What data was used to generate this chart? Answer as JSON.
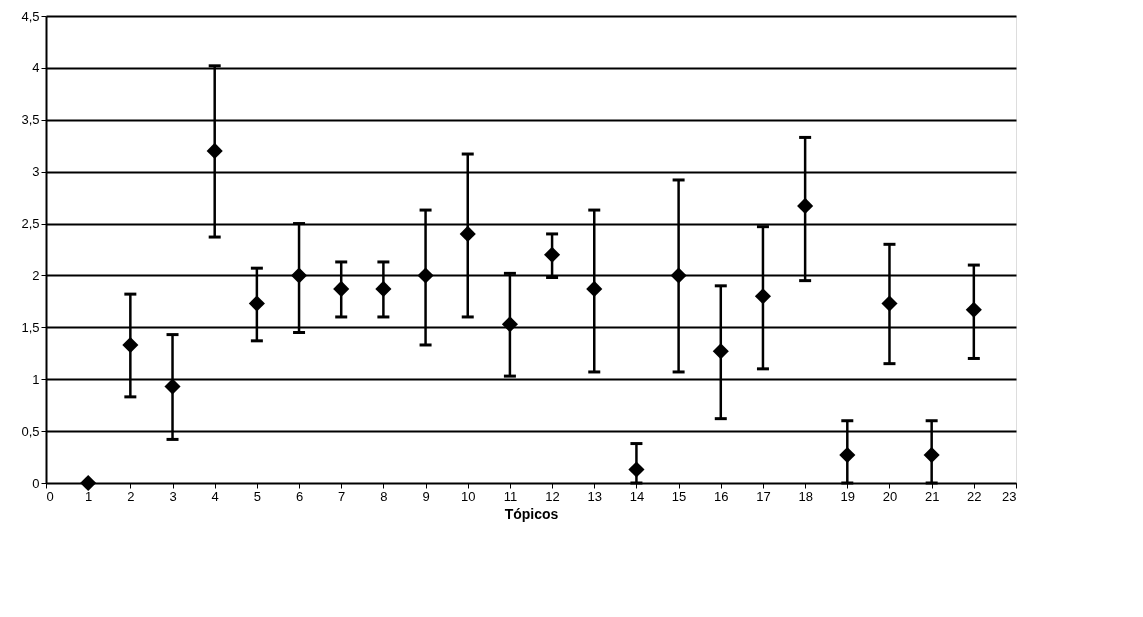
{
  "chart_data": {
    "type": "scatter",
    "xlabel": "Tópicos",
    "x": [
      1,
      2,
      3,
      4,
      5,
      6,
      7,
      8,
      9,
      10,
      11,
      12,
      13,
      14,
      15,
      16,
      17,
      18,
      19,
      20,
      21,
      22
    ],
    "series": [
      {
        "color": "#000000",
        "values": [
          0,
          1.33,
          0.93,
          3.2,
          1.73,
          2.0,
          1.87,
          1.87,
          2.0,
          2.4,
          1.53,
          2.2,
          1.87,
          0.13,
          2.0,
          1.27,
          1.8,
          2.67,
          0.27,
          1.73,
          0.27,
          1.67
        ],
        "errors": [
          null,
          [
            0.83,
            1.82
          ],
          [
            0.42,
            1.43
          ],
          [
            2.37,
            4.02
          ],
          [
            1.37,
            2.07
          ],
          [
            1.45,
            2.5
          ],
          [
            1.6,
            2.13
          ],
          [
            1.6,
            2.13
          ],
          [
            1.33,
            2.63
          ],
          [
            1.6,
            3.17
          ],
          [
            1.03,
            2.02
          ],
          [
            1.98,
            2.4
          ],
          [
            1.07,
            2.63
          ],
          [
            0,
            0.38
          ],
          [
            1.07,
            2.92
          ],
          [
            0.62,
            1.9
          ],
          [
            1.1,
            2.47
          ],
          [
            1.95,
            3.33
          ],
          [
            0,
            0.6
          ],
          [
            1.15,
            2.3
          ],
          [
            0,
            0.6
          ],
          [
            1.2,
            2.1
          ]
        ]
      }
    ],
    "xlim": [
      0,
      23
    ],
    "xticks": [
      0,
      1,
      2,
      3,
      4,
      5,
      6,
      7,
      8,
      9,
      10,
      11,
      12,
      13,
      14,
      15,
      16,
      17,
      18,
      19,
      20,
      21,
      22,
      23
    ],
    "ylim": [
      0,
      4.5
    ],
    "yticks": [
      0,
      {
        "value": 0.5,
        "label": "0,5"
      },
      1,
      {
        "value": 1.5,
        "label": "1,5"
      },
      2,
      {
        "value": 2.5,
        "label": "2,5"
      },
      3,
      {
        "value": 3.5,
        "label": "3,5"
      },
      4,
      {
        "value": 4.5,
        "label": "4,5"
      }
    ],
    "grid": "y",
    "marker": "diamond"
  }
}
